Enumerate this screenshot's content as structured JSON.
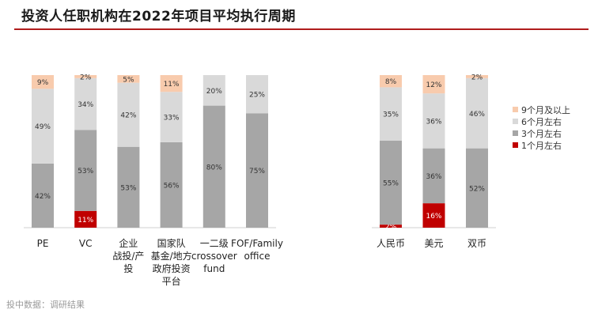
{
  "title": "投资人任职机构在2022年项目平均执行周期",
  "source": "投中数据：调研结果",
  "chart_data": [
    {
      "type": "bar",
      "stacked": true,
      "normalized": true,
      "categories": [
        "PE",
        "VC",
        "企业战投/产投",
        "国家队基金/地方政府投资平台",
        "一二级crossover fund",
        "FOF/Family office"
      ],
      "category_lines": [
        [
          "PE"
        ],
        [
          "VC"
        ],
        [
          "企业",
          "战投/产",
          "投"
        ],
        [
          "国家队",
          "基金/地方",
          "政府投资",
          "平台"
        ],
        [
          "一二级",
          "crossover",
          "fund"
        ],
        [
          "FOF/Family",
          "office"
        ]
      ],
      "series": [
        {
          "name": "1个月左右",
          "color": "#c00000",
          "values": [
            0,
            11,
            0,
            0,
            0,
            0
          ],
          "labels": [
            "",
            "11%",
            "",
            "",
            "",
            ""
          ]
        },
        {
          "name": "3个月左右",
          "color": "#a6a6a6",
          "values": [
            42,
            53,
            53,
            56,
            80,
            75
          ],
          "labels": [
            "42%",
            "53%",
            "53%",
            "56%",
            "80%",
            "75%"
          ]
        },
        {
          "name": "6个月左右",
          "color": "#d9d9d9",
          "values": [
            49,
            34,
            42,
            33,
            20,
            25
          ],
          "labels": [
            "49%",
            "34%",
            "42%",
            "33%",
            "20%",
            "25%"
          ]
        },
        {
          "name": "9个月及以上",
          "color": "#f8cbad",
          "values": [
            9,
            2,
            5,
            11,
            0,
            0
          ],
          "labels": [
            "9%",
            "2%",
            "5%",
            "11%",
            "",
            ""
          ]
        }
      ]
    },
    {
      "type": "bar",
      "stacked": true,
      "normalized": true,
      "categories": [
        "人民币",
        "美元",
        "双币"
      ],
      "category_lines": [
        [
          "人民币"
        ],
        [
          "美元"
        ],
        [
          "双币"
        ]
      ],
      "series": [
        {
          "name": "1个月左右",
          "color": "#c00000",
          "values": [
            2,
            16,
            0
          ],
          "labels": [
            "2%",
            "16%",
            ""
          ]
        },
        {
          "name": "3个月左右",
          "color": "#a6a6a6",
          "values": [
            55,
            36,
            52
          ],
          "labels": [
            "55%",
            "36%",
            "52%"
          ]
        },
        {
          "name": "6个月左右",
          "color": "#d9d9d9",
          "values": [
            35,
            36,
            46
          ],
          "labels": [
            "35%",
            "36%",
            "46%"
          ]
        },
        {
          "name": "9个月及以上",
          "color": "#f8cbad",
          "values": [
            8,
            12,
            2
          ],
          "labels": [
            "8%",
            "12%",
            "2%"
          ]
        }
      ]
    }
  ],
  "legend": {
    "position": "right",
    "items": [
      {
        "label": "9个月及以上",
        "color": "#f8cbad"
      },
      {
        "label": "6个月左右",
        "color": "#d9d9d9"
      },
      {
        "label": "3个月左右",
        "color": "#a6a6a6"
      },
      {
        "label": "1个月左右",
        "color": "#c00000"
      }
    ]
  }
}
